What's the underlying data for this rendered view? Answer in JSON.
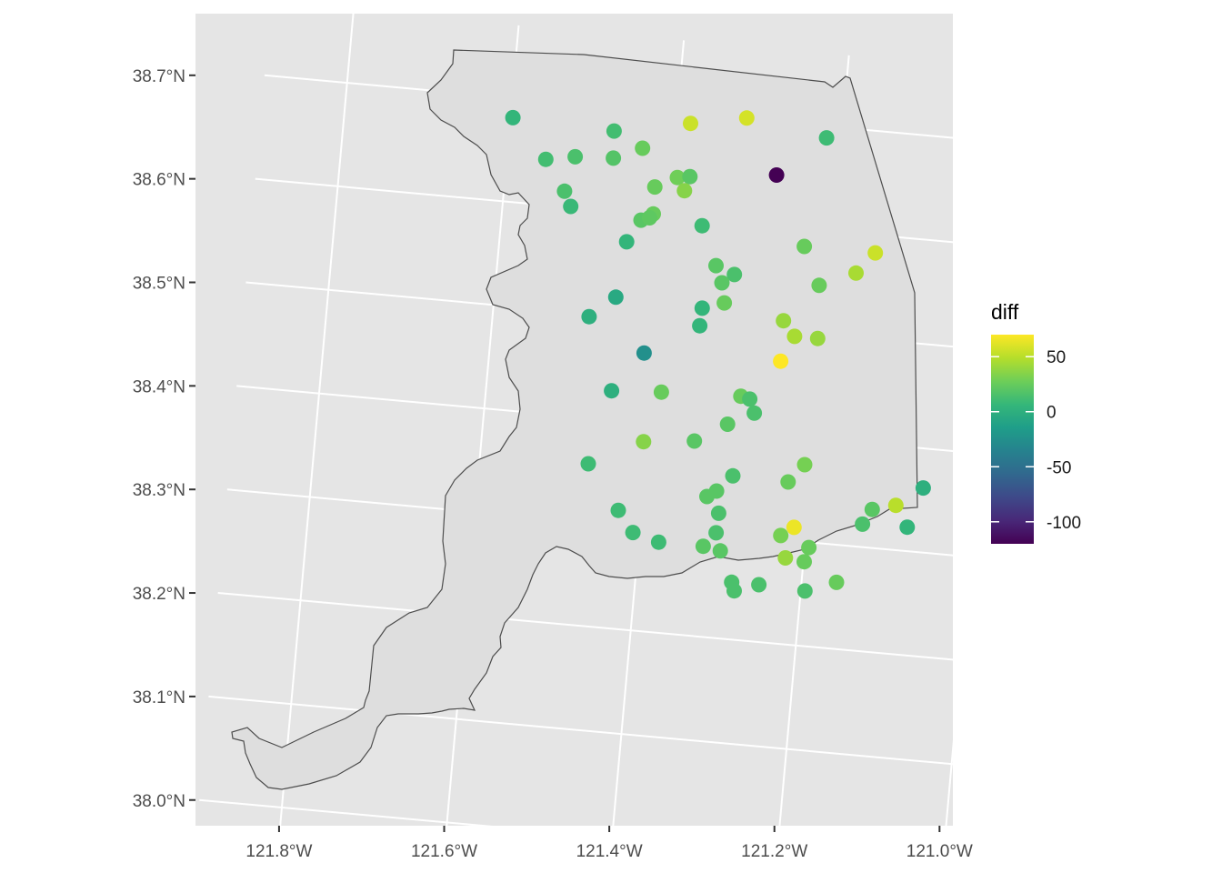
{
  "chart_data": {
    "type": "scatter",
    "subtype": "map-point",
    "x_unit": "°W longitude",
    "y_unit": "°N latitude",
    "xlim": [
      -121.9,
      -120.98
    ],
    "ylim": [
      37.97,
      38.77
    ],
    "x_ticks": [
      {
        "value": -121.8,
        "label": "121.8°W"
      },
      {
        "value": -121.6,
        "label": "121.6°W"
      },
      {
        "value": -121.4,
        "label": "121.4°W"
      },
      {
        "value": -121.2,
        "label": "121.2°W"
      },
      {
        "value": -121.0,
        "label": "121.0°W"
      }
    ],
    "y_ticks": [
      {
        "value": 38.0,
        "label": "38.0°N"
      },
      {
        "value": 38.1,
        "label": "38.1°N"
      },
      {
        "value": 38.2,
        "label": "38.2°N"
      },
      {
        "value": 38.3,
        "label": "38.3°N"
      },
      {
        "value": 38.4,
        "label": "38.4°N"
      },
      {
        "value": 38.5,
        "label": "38.5°N"
      },
      {
        "value": 38.6,
        "label": "38.6°N"
      },
      {
        "value": 38.7,
        "label": "38.7°N"
      }
    ],
    "grid": true,
    "panel_background": "#e5e5e5",
    "region_fill": "#dedede",
    "region_stroke": "#4d4d4d",
    "legend": {
      "title": "diff",
      "position": "right",
      "range": [
        -120,
        70
      ],
      "breaks": [
        {
          "value": 50,
          "label": "50"
        },
        {
          "value": 0,
          "label": "0"
        },
        {
          "value": -50,
          "label": "-50"
        },
        {
          "value": -100,
          "label": "-100"
        }
      ],
      "colormap": "viridis",
      "colormap_stops": [
        "#440154",
        "#482878",
        "#3e4989",
        "#31688e",
        "#26828e",
        "#1f9e89",
        "#35b779",
        "#6ece58",
        "#b5de2b",
        "#fde725"
      ]
    },
    "points": [
      {
        "lon": -121.597,
        "lat": 38.681,
        "diff": 5
      },
      {
        "lon": -121.474,
        "lat": 38.677,
        "diff": 12
      },
      {
        "lon": -121.438,
        "lat": 38.663,
        "diff": 25
      },
      {
        "lon": -121.553,
        "lat": 38.644,
        "diff": 12
      },
      {
        "lon": -121.518,
        "lat": 38.649,
        "diff": 15
      },
      {
        "lon": -121.472,
        "lat": 38.651,
        "diff": 18
      },
      {
        "lon": -121.393,
        "lat": 38.638,
        "diff": 28
      },
      {
        "lon": -121.378,
        "lat": 38.64,
        "diff": 20
      },
      {
        "lon": -121.419,
        "lat": 38.627,
        "diff": 25
      },
      {
        "lon": -121.383,
        "lat": 38.626,
        "diff": 35
      },
      {
        "lon": -121.383,
        "lat": 38.691,
        "diff": 55
      },
      {
        "lon": -121.316,
        "lat": 38.701,
        "diff": 58
      },
      {
        "lon": -121.218,
        "lat": 38.689,
        "diff": 10
      },
      {
        "lon": -121.274,
        "lat": 38.649,
        "diff": -120
      },
      {
        "lon": -121.527,
        "lat": 38.615,
        "diff": 15
      },
      {
        "lon": -121.518,
        "lat": 38.601,
        "diff": 8
      },
      {
        "lon": -121.432,
        "lat": 38.594,
        "diff": 20
      },
      {
        "lon": -121.418,
        "lat": 38.601,
        "diff": 25
      },
      {
        "lon": -121.422,
        "lat": 38.597,
        "diff": 22
      },
      {
        "lon": -121.358,
        "lat": 38.594,
        "diff": 10
      },
      {
        "lon": -121.447,
        "lat": 38.572,
        "diff": 5
      },
      {
        "lon": -121.233,
        "lat": 38.583,
        "diff": 25
      },
      {
        "lon": -121.147,
        "lat": 38.583,
        "diff": 55
      },
      {
        "lon": -121.168,
        "lat": 38.562,
        "diff": 45
      },
      {
        "lon": -121.211,
        "lat": 38.547,
        "diff": 25
      },
      {
        "lon": -121.337,
        "lat": 38.557,
        "diff": 20
      },
      {
        "lon": -121.314,
        "lat": 38.55,
        "diff": 15
      },
      {
        "lon": -121.328,
        "lat": 38.541,
        "diff": 20
      },
      {
        "lon": -121.323,
        "lat": 38.522,
        "diff": 25
      },
      {
        "lon": -121.454,
        "lat": 38.518,
        "diff": -5
      },
      {
        "lon": -121.349,
        "lat": 38.515,
        "diff": 5
      },
      {
        "lon": -121.484,
        "lat": 38.497,
        "diff": 0
      },
      {
        "lon": -121.35,
        "lat": 38.498,
        "diff": 5
      },
      {
        "lon": -121.25,
        "lat": 38.51,
        "diff": 40
      },
      {
        "lon": -121.235,
        "lat": 38.496,
        "diff": 45
      },
      {
        "lon": -121.207,
        "lat": 38.496,
        "diff": 40
      },
      {
        "lon": -121.249,
        "lat": 38.471,
        "diff": 70
      },
      {
        "lon": -121.414,
        "lat": 38.467,
        "diff": -25
      },
      {
        "lon": -121.449,
        "lat": 38.428,
        "diff": 0
      },
      {
        "lon": -121.389,
        "lat": 38.431,
        "diff": 25
      },
      {
        "lon": -121.293,
        "lat": 38.434,
        "diff": 25
      },
      {
        "lon": -121.282,
        "lat": 38.432,
        "diff": 15
      },
      {
        "lon": -121.275,
        "lat": 38.419,
        "diff": 15
      },
      {
        "lon": -121.306,
        "lat": 38.406,
        "diff": 20
      },
      {
        "lon": -121.405,
        "lat": 38.382,
        "diff": 35
      },
      {
        "lon": -121.344,
        "lat": 38.387,
        "diff": 20
      },
      {
        "lon": -121.209,
        "lat": 38.374,
        "diff": 30
      },
      {
        "lon": -121.064,
        "lat": 38.362,
        "diff": 0
      },
      {
        "lon": -121.469,
        "lat": 38.356,
        "diff": 10
      },
      {
        "lon": -121.294,
        "lat": 38.357,
        "diff": 15
      },
      {
        "lon": -121.227,
        "lat": 38.356,
        "diff": 25
      },
      {
        "lon": -121.095,
        "lat": 38.343,
        "diff": 50
      },
      {
        "lon": -121.123,
        "lat": 38.337,
        "diff": 20
      },
      {
        "lon": -121.312,
        "lat": 38.341,
        "diff": 20
      },
      {
        "lon": -121.323,
        "lat": 38.335,
        "diff": 20
      },
      {
        "lon": -121.133,
        "lat": 38.322,
        "diff": 15
      },
      {
        "lon": -121.079,
        "lat": 38.323,
        "diff": 5
      },
      {
        "lon": -121.428,
        "lat": 38.314,
        "diff": 10
      },
      {
        "lon": -121.307,
        "lat": 38.32,
        "diff": 15
      },
      {
        "lon": -121.215,
        "lat": 38.313,
        "diff": 65
      },
      {
        "lon": -121.23,
        "lat": 38.304,
        "diff": 30
      },
      {
        "lon": -121.308,
        "lat": 38.301,
        "diff": 15
      },
      {
        "lon": -121.408,
        "lat": 38.294,
        "diff": 10
      },
      {
        "lon": -121.195,
        "lat": 38.295,
        "diff": 25
      },
      {
        "lon": -121.376,
        "lat": 38.287,
        "diff": 10
      },
      {
        "lon": -121.322,
        "lat": 38.287,
        "diff": 20
      },
      {
        "lon": -121.301,
        "lat": 38.284,
        "diff": 20
      },
      {
        "lon": -121.222,
        "lat": 38.283,
        "diff": 40
      },
      {
        "lon": -121.199,
        "lat": 38.281,
        "diff": 25
      },
      {
        "lon": -121.158,
        "lat": 38.264,
        "diff": 25
      },
      {
        "lon": -121.284,
        "lat": 38.255,
        "diff": 15
      },
      {
        "lon": -121.28,
        "lat": 38.247,
        "diff": 15
      },
      {
        "lon": -121.251,
        "lat": 38.255,
        "diff": 15
      },
      {
        "lon": -121.195,
        "lat": 38.253,
        "diff": 15
      }
    ]
  }
}
